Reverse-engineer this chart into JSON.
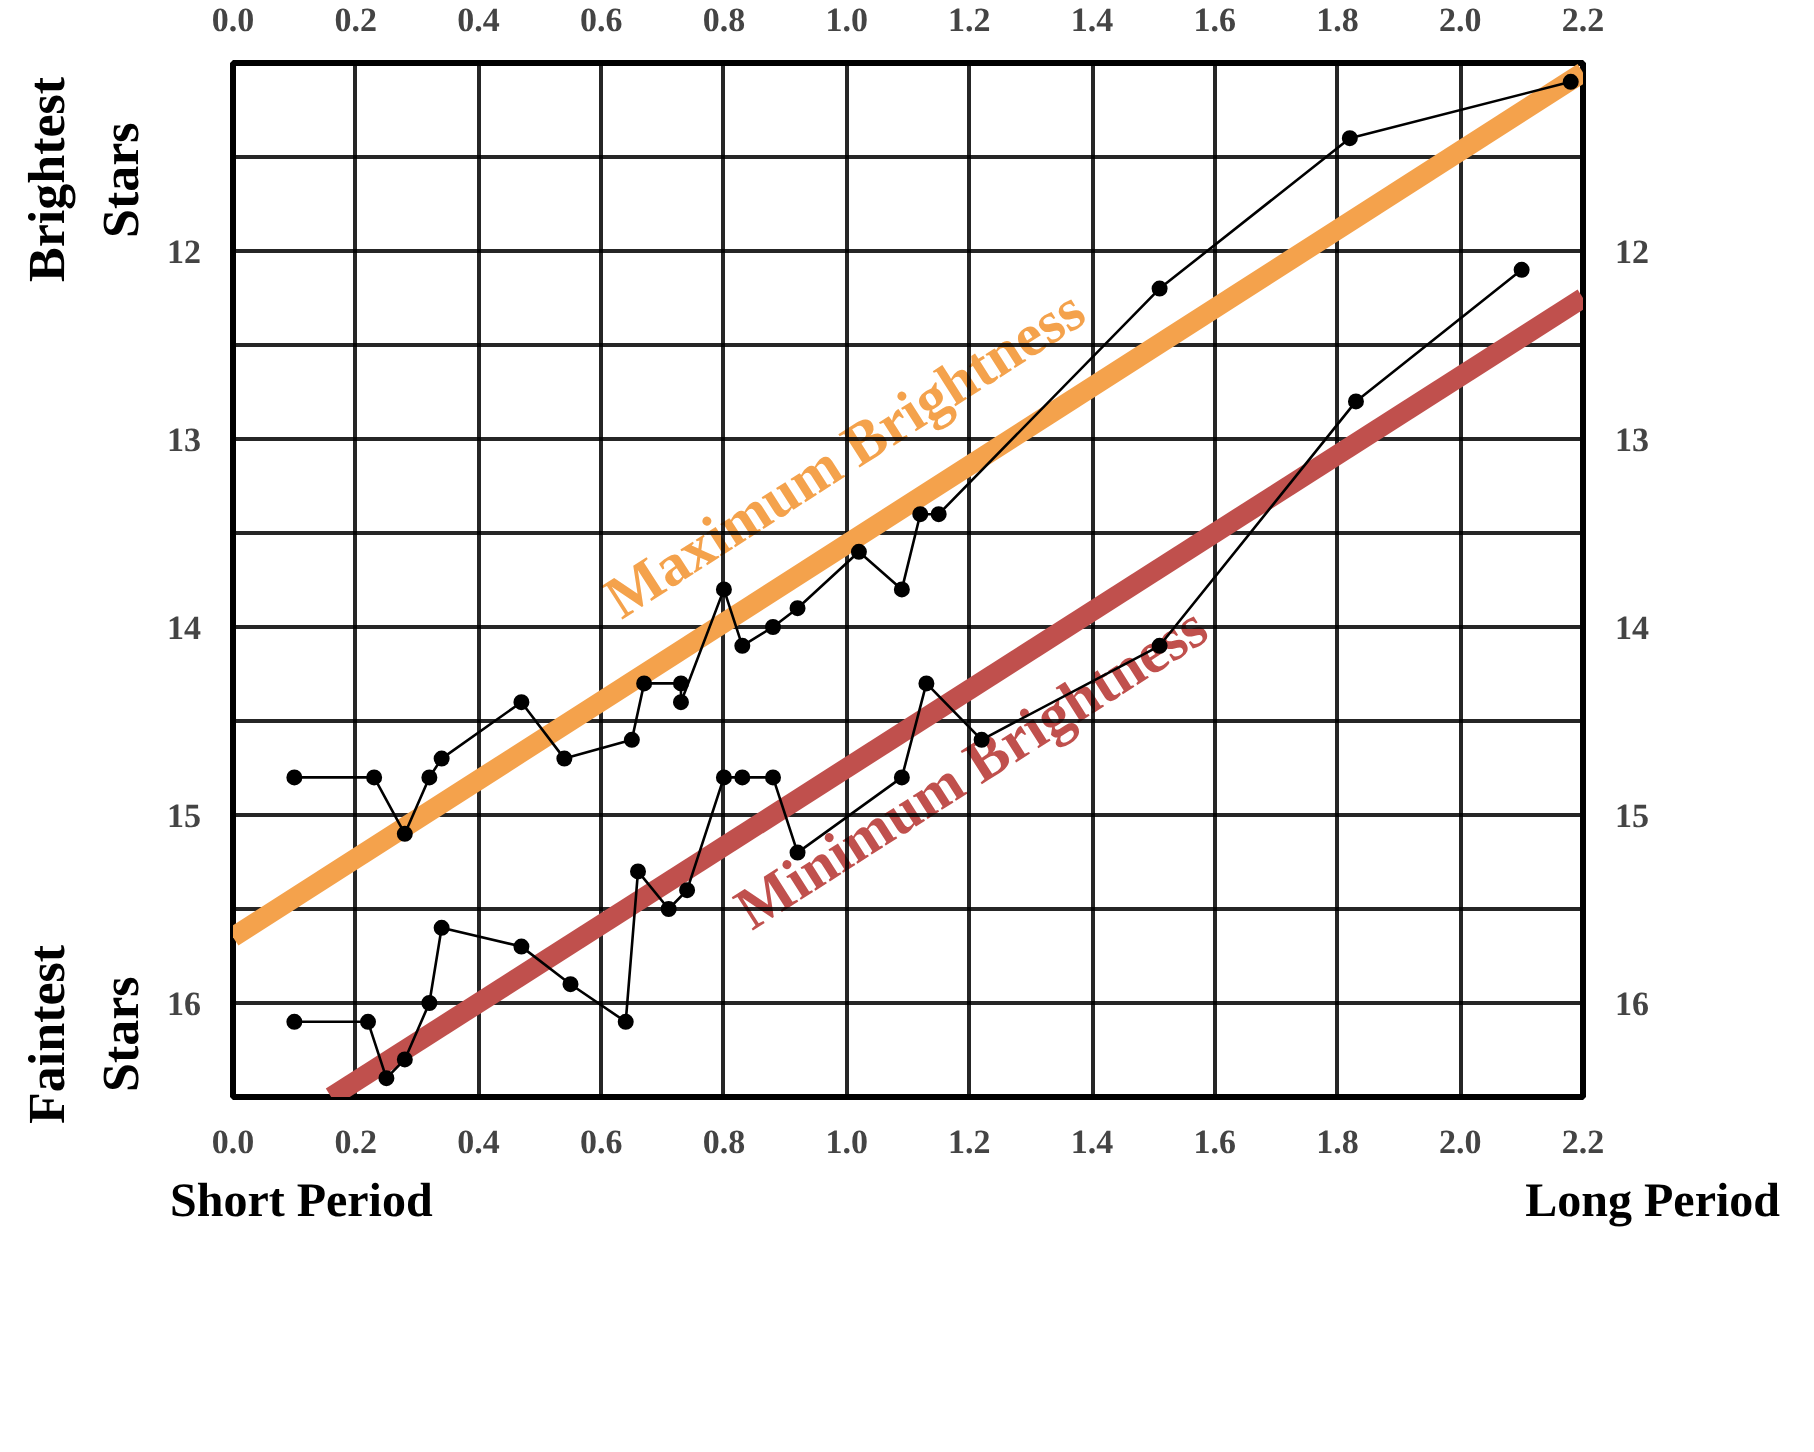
{
  "chart_data": {
    "type": "line",
    "annotations": [
      "Brightest Stars",
      "Faintest Stars",
      "Short Period",
      "Long Period"
    ],
    "xlim": [
      0.0,
      2.2
    ],
    "xticks": [
      {
        "value": 0.0,
        "label": "0.0"
      },
      {
        "value": 0.2,
        "label": "0.2"
      },
      {
        "value": 0.4,
        "label": "0.4"
      },
      {
        "value": 0.6,
        "label": "0.6"
      },
      {
        "value": 0.8,
        "label": "0.8"
      },
      {
        "value": 1.0,
        "label": "1.0"
      },
      {
        "value": 1.2,
        "label": "1.2"
      },
      {
        "value": 1.4,
        "label": "1.4"
      },
      {
        "value": 1.6,
        "label": "1.6"
      },
      {
        "value": 1.8,
        "label": "1.8"
      },
      {
        "value": 2.0,
        "label": "2.0"
      },
      {
        "value": 2.2,
        "label": "2.2"
      }
    ],
    "x2lim": [
      0.0,
      2.2
    ],
    "x2ticks": [
      {
        "value": 0.0,
        "label": "0.0"
      },
      {
        "value": 0.2,
        "label": "0.2"
      },
      {
        "value": 0.4,
        "label": "0.4"
      },
      {
        "value": 0.6,
        "label": "0.6"
      },
      {
        "value": 0.8,
        "label": "0.8"
      },
      {
        "value": 1.0,
        "label": "1.0"
      },
      {
        "value": 1.2,
        "label": "1.2"
      },
      {
        "value": 1.4,
        "label": "1.4"
      },
      {
        "value": 1.6,
        "label": "1.6"
      },
      {
        "value": 1.8,
        "label": "1.8"
      },
      {
        "value": 2.0,
        "label": "2.0"
      },
      {
        "value": 2.2,
        "label": "2.2"
      }
    ],
    "ylim": [
      16.5,
      11.0
    ],
    "yticks": [
      {
        "value": 11.5,
        "label": null
      },
      12,
      {
        "value": 12.5,
        "label": null
      },
      13,
      {
        "value": 13.5,
        "label": null
      },
      14,
      {
        "value": 14.5,
        "label": null
      },
      15,
      {
        "value": 15.5,
        "label": null
      },
      16
    ],
    "y2lim": [
      16.5,
      11.0
    ],
    "y2ticks": [
      12,
      13,
      14,
      15,
      16
    ],
    "grid": true,
    "marker": "circle",
    "line_style": "solid",
    "series": [
      {
        "color": "#000000",
        "x": [
          0.1,
          0.23,
          0.28,
          0.32,
          0.34,
          0.47,
          0.54,
          0.65,
          0.67,
          0.73,
          0.73,
          0.8,
          0.83,
          0.88,
          0.92,
          1.02,
          1.09,
          1.12,
          1.15,
          1.51,
          1.82,
          2.18
        ],
        "values": [
          14.8,
          14.8,
          15.1,
          14.8,
          14.7,
          14.4,
          14.7,
          14.6,
          14.3,
          14.3,
          14.4,
          13.8,
          14.1,
          14.0,
          13.9,
          13.6,
          13.8,
          13.4,
          13.4,
          12.2,
          11.4,
          11.1
        ]
      },
      {
        "color": "#000000",
        "x": [
          0.1,
          0.22,
          0.25,
          0.28,
          0.32,
          0.34,
          0.47,
          0.55,
          0.64,
          0.66,
          0.71,
          0.74,
          0.8,
          0.83,
          0.88,
          0.92,
          1.09,
          1.13,
          1.22,
          1.51,
          1.83,
          2.1
        ],
        "values": [
          16.1,
          16.1,
          16.4,
          16.3,
          16.0,
          15.6,
          15.7,
          15.9,
          16.1,
          15.3,
          15.5,
          15.4,
          14.8,
          14.8,
          14.8,
          15.2,
          14.8,
          14.3,
          14.6,
          14.1,
          12.8,
          12.1
        ]
      },
      {
        "name": "Maximum Brightness",
        "color": "#f4a24c",
        "marker": "none",
        "x": [
          0.0,
          2.2
        ],
        "values": [
          15.65,
          11.05
        ]
      },
      {
        "name": "Minimum Brightness",
        "color": "#c0504d",
        "marker": "none",
        "x": [
          0.16,
          2.2
        ],
        "values": [
          16.5,
          12.25
        ]
      }
    ]
  }
}
